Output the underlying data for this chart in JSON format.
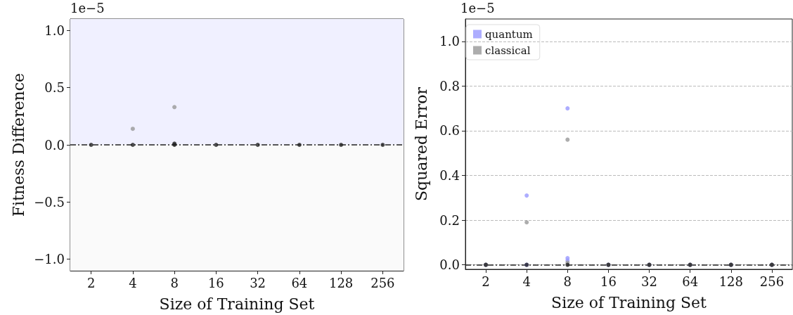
{
  "chart_data": [
    {
      "type": "scatter",
      "ylabel": "Fitness Difference",
      "xlabel": "Size of Training Set",
      "categories": [
        "2",
        "4",
        "8",
        "16",
        "32",
        "64",
        "128",
        "256"
      ],
      "series": [
        {
          "color": "#999999",
          "x": [
            "4",
            "8"
          ],
          "values": [
            0.14,
            0.33
          ]
        },
        {
          "color": "#222222",
          "x": [
            "2",
            "4",
            "8",
            "8",
            "16",
            "32",
            "64",
            "128",
            "256"
          ],
          "values": [
            0,
            0,
            0,
            0.01,
            0,
            0,
            0,
            0,
            0
          ]
        }
      ],
      "ylim": [
        -1.1,
        1.1
      ],
      "yticks": [
        {
          "value": -1,
          "label": "−1.0"
        },
        {
          "value": -0.5,
          "label": "−0.5"
        },
        {
          "value": 0,
          "label": "0.0"
        },
        {
          "value": 0.5,
          "label": "0.5"
        },
        {
          "value": 1,
          "label": "1.0"
        }
      ],
      "bands": [
        {
          "axis": "y",
          "from": 0,
          "to": 1.1,
          "color": "#f0f0ff"
        },
        {
          "axis": "y",
          "from": -1.1,
          "to": 0,
          "color": "#fafafa"
        }
      ],
      "ref_lines": [
        {
          "axis": "y",
          "value": 0,
          "color": "#222222",
          "line_style": "dashed"
        }
      ],
      "annotations": [
        "1e−5"
      ],
      "grid": "y",
      "marker": "circle",
      "legend": false
    },
    {
      "type": "scatter",
      "ylabel": "Squared Error",
      "xlabel": "Size of Training Set",
      "categories": [
        "2",
        "4",
        "8",
        "16",
        "32",
        "64",
        "128",
        "256"
      ],
      "series": [
        {
          "name": "quantum",
          "color": "#9999ff",
          "x": [
            "2",
            "4",
            "4",
            "8",
            "8",
            "8",
            "16",
            "32",
            "64",
            "128",
            "256"
          ],
          "values": [
            0,
            0.31,
            0,
            0.7,
            0.03,
            0.02,
            0,
            0,
            0,
            0,
            0
          ]
        },
        {
          "name": "classical",
          "color": "#999999",
          "x": [
            "2",
            "4",
            "8",
            "8",
            "16",
            "32",
            "64",
            "128",
            "256"
          ],
          "values": [
            0,
            0.19,
            0.56,
            0.01,
            0,
            0,
            0,
            0,
            0
          ]
        },
        {
          "color": "#222222",
          "x": [
            "2",
            "4",
            "8",
            "16",
            "32",
            "64",
            "128",
            "256"
          ],
          "values": [
            0,
            0,
            0,
            0,
            0,
            0,
            0,
            0
          ]
        }
      ],
      "ylim": [
        -0.02,
        1.1
      ],
      "yticks": [
        {
          "value": 0,
          "label": "0.0"
        },
        {
          "value": 0.2,
          "label": "0.2"
        },
        {
          "value": 0.4,
          "label": "0.4"
        },
        {
          "value": 0.6,
          "label": "0.6"
        },
        {
          "value": 0.8,
          "label": "0.8"
        },
        {
          "value": 1,
          "label": "1.0"
        }
      ],
      "ref_lines": [
        {
          "axis": "y",
          "value": 0,
          "color": "#222222",
          "line_style": "dashed"
        }
      ],
      "annotations": [
        "1e−5"
      ],
      "grid": "y",
      "marker": "circle",
      "legend": "top left"
    }
  ]
}
